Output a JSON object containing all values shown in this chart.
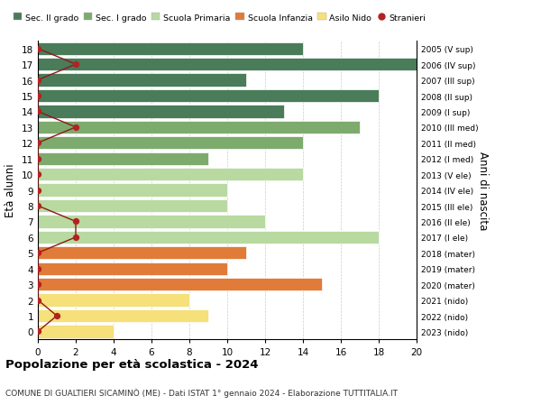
{
  "ages": [
    18,
    17,
    16,
    15,
    14,
    13,
    12,
    11,
    10,
    9,
    8,
    7,
    6,
    5,
    4,
    3,
    2,
    1,
    0
  ],
  "labels_right": [
    "2005 (V sup)",
    "2006 (IV sup)",
    "2007 (III sup)",
    "2008 (II sup)",
    "2009 (I sup)",
    "2010 (III med)",
    "2011 (II med)",
    "2012 (I med)",
    "2013 (V ele)",
    "2014 (IV ele)",
    "2015 (III ele)",
    "2016 (II ele)",
    "2017 (I ele)",
    "2018 (mater)",
    "2019 (mater)",
    "2020 (mater)",
    "2021 (nido)",
    "2022 (nido)",
    "2023 (nido)"
  ],
  "bar_values": [
    14,
    20,
    11,
    18,
    13,
    17,
    14,
    9,
    14,
    10,
    10,
    12,
    18,
    11,
    10,
    15,
    8,
    9,
    4
  ],
  "bar_colors": [
    "#4a7c59",
    "#4a7c59",
    "#4a7c59",
    "#4a7c59",
    "#4a7c59",
    "#7dab6e",
    "#7dab6e",
    "#7dab6e",
    "#b8d9a0",
    "#b8d9a0",
    "#b8d9a0",
    "#b8d9a0",
    "#b8d9a0",
    "#e07b39",
    "#e07b39",
    "#e07b39",
    "#f5e07a",
    "#f5e07a",
    "#f5e07a"
  ],
  "stranieri_values": [
    0,
    2,
    0,
    0,
    0,
    2,
    0,
    0,
    0,
    0,
    0,
    2,
    2,
    0,
    0,
    0,
    0,
    1,
    0
  ],
  "legend_labels": [
    "Sec. II grado",
    "Sec. I grado",
    "Scuola Primaria",
    "Scuola Infanzia",
    "Asilo Nido",
    "Stranieri"
  ],
  "legend_colors": [
    "#4a7c59",
    "#7dab6e",
    "#b8d9a0",
    "#e07b39",
    "#f5e07a",
    "#b22222"
  ],
  "ylabel_left": "Età alunni",
  "ylabel_right": "Anni di nascita",
  "title": "Popolazione per età scolastica - 2024",
  "subtitle": "COMUNE DI GUALTIERI SICAMINÒ (ME) - Dati ISTAT 1° gennaio 2024 - Elaborazione TUTTITALIA.IT",
  "xlim": [
    0,
    20
  ],
  "xticks": [
    0,
    2,
    4,
    6,
    8,
    10,
    12,
    14,
    16,
    18,
    20
  ],
  "background_color": "#ffffff",
  "grid_color": "#cccccc",
  "stranieri_line_color": "#8b1a1a",
  "stranieri_dot_color": "#b22222"
}
